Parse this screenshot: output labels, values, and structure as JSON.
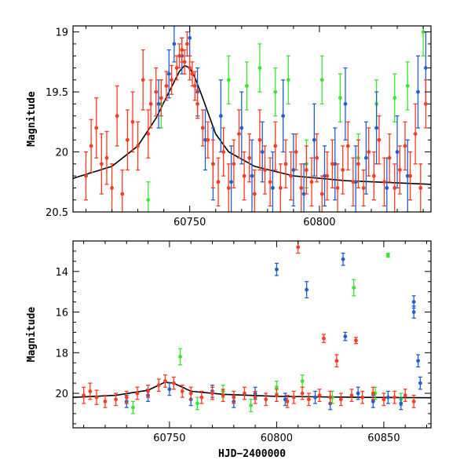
{
  "colors": {
    "red": "#ff3b20",
    "blue": "#1f5fd6",
    "green": "#3ae630",
    "model": "#000000"
  },
  "chart_data": [
    {
      "type": "scatter",
      "panel": "top",
      "title": "",
      "xlabel": "",
      "ylabel": "Magnitude",
      "xlim": [
        60705,
        60843
      ],
      "ylim": [
        20.5,
        18.95
      ],
      "y_inverted": true,
      "x_ticks": [
        60750,
        60800
      ],
      "y_ticks": [
        19,
        19.5,
        20,
        20.5
      ],
      "x_tick_labels": [
        "60750",
        "60800"
      ],
      "y_tick_labels": [
        "19",
        "19.5",
        "20",
        "20.5"
      ],
      "grid": false,
      "legend": "none",
      "series": [
        {
          "color": "red",
          "points": [
            [
              60710,
              20.2,
              0.2
            ],
            [
              60712,
              19.95,
              0.22
            ],
            [
              60714,
              19.8,
              0.25
            ],
            [
              60716,
              20.1,
              0.25
            ],
            [
              60718,
              20.05,
              0.22
            ],
            [
              60720,
              20.3,
              0.2
            ],
            [
              60722,
              19.7,
              0.25
            ],
            [
              60724,
              20.35,
              0.2
            ],
            [
              60726,
              19.9,
              0.25
            ],
            [
              60728,
              19.75,
              0.25
            ],
            [
              60730,
              19.95,
              0.2
            ],
            [
              60732,
              19.4,
              0.25
            ],
            [
              60734,
              19.85,
              0.2
            ],
            [
              60735,
              19.6,
              0.2
            ],
            [
              60737,
              19.5,
              0.2
            ],
            [
              60739,
              19.55,
              0.15
            ],
            [
              60741,
              19.45,
              0.12
            ],
            [
              60743,
              19.4,
              0.12
            ],
            [
              60745,
              19.3,
              0.1
            ],
            [
              60746,
              19.2,
              0.1
            ],
            [
              60747,
              19.15,
              0.1
            ],
            [
              60748,
              19.25,
              0.1
            ],
            [
              60749,
              19.1,
              0.1
            ],
            [
              60750,
              19.3,
              0.1
            ],
            [
              60751,
              19.35,
              0.1
            ],
            [
              60752,
              19.45,
              0.12
            ],
            [
              60753,
              19.6,
              0.12
            ],
            [
              60755,
              19.8,
              0.15
            ],
            [
              60757,
              19.9,
              0.15
            ],
            [
              60759,
              20.1,
              0.2
            ],
            [
              60761,
              20.25,
              0.2
            ],
            [
              60763,
              20.0,
              0.2
            ],
            [
              60765,
              20.3,
              0.2
            ],
            [
              60767,
              20.1,
              0.2
            ],
            [
              60769,
              19.85,
              0.2
            ],
            [
              60771,
              20.2,
              0.2
            ],
            [
              60773,
              20.05,
              0.2
            ],
            [
              60775,
              20.35,
              0.2
            ],
            [
              60777,
              19.9,
              0.25
            ],
            [
              60779,
              20.15,
              0.2
            ],
            [
              60781,
              20.25,
              0.2
            ],
            [
              60783,
              19.95,
              0.2
            ],
            [
              60785,
              20.3,
              0.2
            ],
            [
              60787,
              20.1,
              0.2
            ],
            [
              60789,
              20.2,
              0.2
            ],
            [
              60791,
              20.0,
              0.15
            ],
            [
              60793,
              20.3,
              0.2
            ],
            [
              60795,
              20.15,
              0.2
            ],
            [
              60797,
              20.25,
              0.2
            ],
            [
              60799,
              20.05,
              0.2
            ],
            [
              60801,
              20.35,
              0.15
            ],
            [
              60803,
              20.2,
              0.2
            ],
            [
              60805,
              20.1,
              0.2
            ],
            [
              60807,
              20.3,
              0.2
            ],
            [
              60809,
              20.15,
              0.2
            ],
            [
              60811,
              19.95,
              0.2
            ],
            [
              60813,
              20.25,
              0.2
            ],
            [
              60815,
              20.1,
              0.2
            ],
            [
              60817,
              20.3,
              0.15
            ],
            [
              60819,
              20.0,
              0.2
            ],
            [
              60821,
              20.2,
              0.2
            ],
            [
              60823,
              19.9,
              0.2
            ],
            [
              60825,
              20.25,
              0.2
            ],
            [
              60827,
              20.05,
              0.2
            ],
            [
              60829,
              20.3,
              0.2
            ],
            [
              60831,
              20.15,
              0.2
            ],
            [
              60833,
              19.95,
              0.2
            ],
            [
              60835,
              20.2,
              0.2
            ],
            [
              60837,
              19.85,
              0.25
            ],
            [
              60839,
              20.3,
              0.2
            ],
            [
              60841,
              19.6,
              0.2
            ]
          ]
        },
        {
          "color": "blue",
          "points": [
            [
              60738,
              19.6,
              0.2
            ],
            [
              60742,
              19.35,
              0.2
            ],
            [
              60744,
              19.1,
              0.15
            ],
            [
              60747,
              19.2,
              0.15
            ],
            [
              60750,
              19.05,
              0.15
            ],
            [
              60753,
              19.5,
              0.2
            ],
            [
              60756,
              19.9,
              0.25
            ],
            [
              60759,
              20.1,
              0.3
            ],
            [
              60762,
              19.7,
              0.3
            ],
            [
              60766,
              20.25,
              0.3
            ],
            [
              60770,
              19.8,
              0.3
            ],
            [
              60774,
              20.2,
              0.3
            ],
            [
              60778,
              20.0,
              0.25
            ],
            [
              60782,
              20.3,
              0.3
            ],
            [
              60786,
              19.7,
              0.3
            ],
            [
              60790,
              20.15,
              0.3
            ],
            [
              60794,
              20.35,
              0.25
            ],
            [
              60798,
              19.9,
              0.3
            ],
            [
              60802,
              20.2,
              0.25
            ],
            [
              60806,
              20.1,
              0.3
            ],
            [
              60810,
              19.6,
              0.3
            ],
            [
              60814,
              20.25,
              0.3
            ],
            [
              60818,
              20.05,
              0.3
            ],
            [
              60822,
              19.8,
              0.3
            ],
            [
              60826,
              20.3,
              0.25
            ],
            [
              60830,
              20.0,
              0.3
            ],
            [
              60834,
              20.2,
              0.3
            ],
            [
              60838,
              19.5,
              0.3
            ],
            [
              60841,
              19.3,
              0.3
            ]
          ]
        },
        {
          "color": "green",
          "points": [
            [
              60734,
              20.4,
              0.15
            ],
            [
              60739,
              19.6,
              0.2
            ],
            [
              60765,
              19.4,
              0.2
            ],
            [
              60772,
              19.45,
              0.2
            ],
            [
              60777,
              19.3,
              0.2
            ],
            [
              60783,
              19.5,
              0.2
            ],
            [
              60788,
              19.4,
              0.2
            ],
            [
              60795,
              20.1,
              0.2
            ],
            [
              60801,
              19.4,
              0.2
            ],
            [
              60808,
              19.55,
              0.2
            ],
            [
              60815,
              20.05,
              0.2
            ],
            [
              60822,
              19.6,
              0.2
            ],
            [
              60829,
              19.55,
              0.2
            ],
            [
              60834,
              19.45,
              0.2
            ],
            [
              60840,
              19.0,
              0.2
            ]
          ]
        }
      ],
      "model_curve": [
        [
          60705,
          20.22
        ],
        [
          60720,
          20.12
        ],
        [
          60730,
          19.95
        ],
        [
          60737,
          19.72
        ],
        [
          60742,
          19.5
        ],
        [
          60746,
          19.33
        ],
        [
          60748,
          19.28
        ],
        [
          60750,
          19.3
        ],
        [
          60752,
          19.38
        ],
        [
          60755,
          19.55
        ],
        [
          60760,
          19.85
        ],
        [
          60765,
          20.0
        ],
        [
          60775,
          20.12
        ],
        [
          60790,
          20.2
        ],
        [
          60810,
          20.24
        ],
        [
          60843,
          20.27
        ]
      ]
    },
    {
      "type": "scatter",
      "panel": "bottom",
      "title": "",
      "xlabel": "HJD−2400000",
      "ylabel": "Magnitude",
      "xlim": [
        60705,
        60872
      ],
      "ylim": [
        21.7,
        12.5
      ],
      "y_inverted": true,
      "x_ticks": [
        60750,
        60800,
        60850
      ],
      "y_ticks": [
        14,
        16,
        18,
        20
      ],
      "x_tick_labels": [
        "60750",
        "60800",
        "60850"
      ],
      "y_tick_labels": [
        "14",
        "16",
        "18",
        "20"
      ],
      "grid": false,
      "legend": "none",
      "series": [
        {
          "color": "red",
          "points": [
            [
              60710,
              20.1,
              0.4
            ],
            [
              60713,
              19.9,
              0.4
            ],
            [
              60716,
              20.2,
              0.35
            ],
            [
              60720,
              20.4,
              0.3
            ],
            [
              60725,
              20.3,
              0.3
            ],
            [
              60730,
              20.2,
              0.3
            ],
            [
              60735,
              20.0,
              0.3
            ],
            [
              60740,
              19.9,
              0.3
            ],
            [
              60745,
              19.6,
              0.3
            ],
            [
              60748,
              19.4,
              0.3
            ],
            [
              60752,
              19.5,
              0.3
            ],
            [
              60756,
              19.9,
              0.3
            ],
            [
              60760,
              20.0,
              0.3
            ],
            [
              60765,
              20.2,
              0.3
            ],
            [
              60770,
              20.0,
              0.3
            ],
            [
              60775,
              20.1,
              0.3
            ],
            [
              60780,
              20.2,
              0.3
            ],
            [
              60785,
              20.0,
              0.3
            ],
            [
              60790,
              20.2,
              0.3
            ],
            [
              60795,
              20.3,
              0.3
            ],
            [
              60800,
              20.1,
              0.3
            ],
            [
              60805,
              20.4,
              0.3
            ],
            [
              60808,
              20.2,
              0.3
            ],
            [
              60810,
              12.8,
              0.3
            ],
            [
              60812,
              20.0,
              0.3
            ],
            [
              60815,
              20.3,
              0.3
            ],
            [
              60820,
              20.1,
              0.3
            ],
            [
              60822,
              17.3,
              0.2
            ],
            [
              60825,
              20.2,
              0.3
            ],
            [
              60828,
              18.4,
              0.3
            ],
            [
              60830,
              20.3,
              0.3
            ],
            [
              60835,
              20.1,
              0.3
            ],
            [
              60837,
              17.4,
              0.15
            ],
            [
              60840,
              20.2,
              0.3
            ],
            [
              60845,
              20.0,
              0.3
            ],
            [
              60850,
              20.3,
              0.3
            ],
            [
              60855,
              20.2,
              0.3
            ],
            [
              60860,
              20.1,
              0.3
            ],
            [
              60864,
              20.4,
              0.3
            ]
          ]
        },
        {
          "color": "blue",
          "points": [
            [
              60730,
              20.4,
              0.3
            ],
            [
              60740,
              20.1,
              0.3
            ],
            [
              60750,
              19.8,
              0.3
            ],
            [
              60760,
              20.3,
              0.3
            ],
            [
              60770,
              19.9,
              0.3
            ],
            [
              60780,
              20.4,
              0.3
            ],
            [
              60790,
              20.0,
              0.3
            ],
            [
              60800,
              13.9,
              0.3
            ],
            [
              60804,
              20.3,
              0.3
            ],
            [
              60814,
              14.9,
              0.4
            ],
            [
              60818,
              20.2,
              0.3
            ],
            [
              60825,
              20.5,
              0.3
            ],
            [
              60831,
              13.4,
              0.3
            ],
            [
              60832,
              17.2,
              0.2
            ],
            [
              60838,
              20.0,
              0.3
            ],
            [
              60845,
              20.4,
              0.3
            ],
            [
              60852,
              20.2,
              0.3
            ],
            [
              60858,
              20.5,
              0.3
            ],
            [
              60864,
              15.5,
              0.3
            ],
            [
              60864,
              16.0,
              0.3
            ],
            [
              60866,
              18.4,
              0.3
            ],
            [
              60867,
              19.5,
              0.3
            ]
          ]
        },
        {
          "color": "green",
          "points": [
            [
              60733,
              20.7,
              0.3
            ],
            [
              60755,
              18.2,
              0.4
            ],
            [
              60763,
              20.5,
              0.3
            ],
            [
              60775,
              19.9,
              0.3
            ],
            [
              60788,
              20.6,
              0.3
            ],
            [
              60800,
              19.7,
              0.3
            ],
            [
              60812,
              19.4,
              0.3
            ],
            [
              60826,
              20.2,
              0.3
            ],
            [
              60836,
              14.8,
              0.4
            ],
            [
              60846,
              20.0,
              0.3
            ],
            [
              60852,
              13.2,
              0.1
            ],
            [
              60858,
              20.3,
              0.3
            ]
          ]
        }
      ],
      "model_curve": [
        [
          60705,
          20.2
        ],
        [
          60725,
          20.1
        ],
        [
          60740,
          19.85
        ],
        [
          60748,
          19.45
        ],
        [
          60752,
          19.5
        ],
        [
          60760,
          19.9
        ],
        [
          60775,
          20.05
        ],
        [
          60800,
          20.15
        ],
        [
          60840,
          20.2
        ],
        [
          60872,
          20.22
        ]
      ]
    }
  ]
}
